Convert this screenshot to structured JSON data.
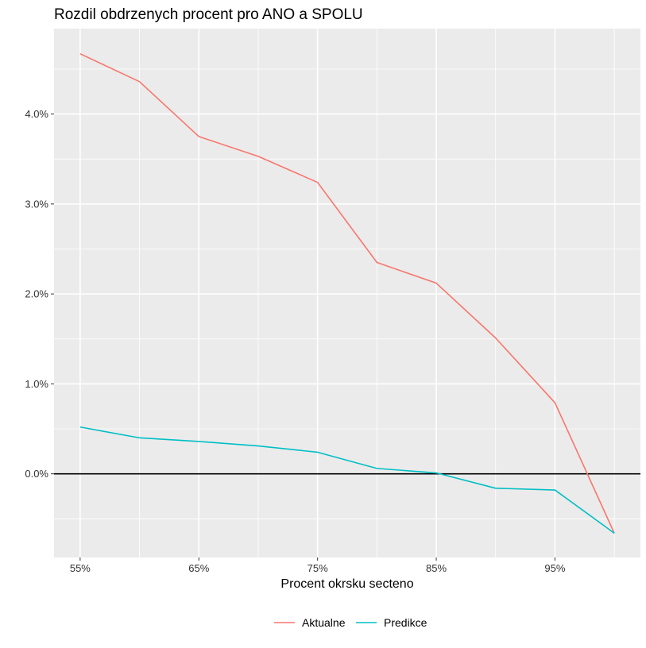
{
  "chart_data": {
    "type": "line",
    "title": "Rozdil obdrzenych procent pro ANO a SPOLU",
    "xlabel": "Procent okrsku secteno",
    "ylabel": "",
    "x": [
      55,
      60,
      65,
      70,
      75,
      80,
      85,
      90,
      95,
      100
    ],
    "x_ticks": [
      55,
      65,
      75,
      85,
      95
    ],
    "x_tick_labels": [
      "55%",
      "65%",
      "75%",
      "85%",
      "95%"
    ],
    "xlim": [
      52.8,
      102.2
    ],
    "y_ticks": [
      0,
      1,
      2,
      3,
      4
    ],
    "y_tick_labels": [
      "0.0%",
      "1.0%",
      "2.0%",
      "3.0%",
      "4.0%"
    ],
    "ylim": [
      -0.93,
      4.95
    ],
    "reference_line_y": 0,
    "grid": true,
    "legend_position": "bottom",
    "series": [
      {
        "name": "Aktualne",
        "color": "#F8766D",
        "values": [
          4.67,
          4.36,
          3.75,
          3.53,
          3.24,
          2.35,
          2.12,
          1.51,
          0.79,
          -0.66
        ]
      },
      {
        "name": "Predikce",
        "color": "#00BFC4",
        "values": [
          0.52,
          0.4,
          0.36,
          0.31,
          0.24,
          0.06,
          0.01,
          -0.16,
          -0.18,
          -0.66
        ]
      }
    ]
  }
}
